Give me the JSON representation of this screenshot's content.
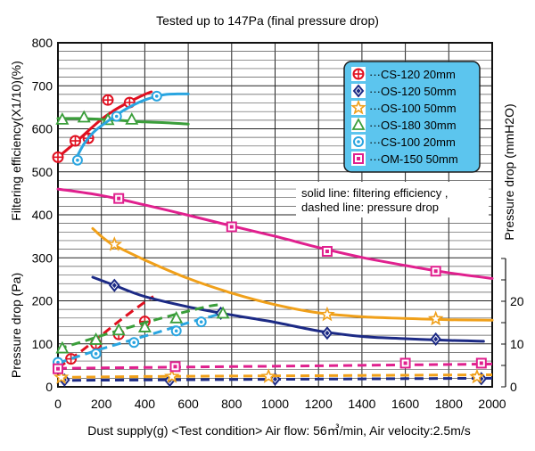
{
  "chart_data": {
    "type": "line",
    "title": "Tested up to 147Pa (final pressure drop)",
    "xlabel": "Dust supply(g)  <Test condition> Air flow: 56㎥/min, Air velocity:2.5m/s",
    "ylabel_left_top": "Filtering efficiency(X1/10)(%)",
    "ylabel_left_bottom": "Pressure drop (Pa)",
    "ylabel_right": "Pressure drop (mmH2O)",
    "xlim": [
      0,
      2000
    ],
    "ylim": [
      0,
      800
    ],
    "ylim_right": [
      0,
      30
    ],
    "xticks": [
      "0",
      "200",
      "400",
      "600",
      "800",
      "1000",
      "1200",
      "1400",
      "1600",
      "1800",
      "2000"
    ],
    "yticks_left": [
      "0",
      "100",
      "200",
      "300",
      "400",
      "500",
      "600",
      "700",
      "800"
    ],
    "yticks_right": [
      "0",
      "10",
      "20"
    ],
    "note_lines": [
      "solid line: filtering efficiency ,",
      "dashed line: pressure drop"
    ],
    "legend_position": "top-right",
    "series": [
      {
        "name": "CS-120 20mm",
        "color": "#e01020",
        "marker": "circle-plus",
        "efficiency": [
          [
            0,
            534
          ],
          [
            50,
            555
          ],
          [
            100,
            577
          ],
          [
            150,
            600
          ],
          [
            200,
            622
          ],
          [
            250,
            640
          ],
          [
            300,
            655
          ],
          [
            350,
            668
          ],
          [
            400,
            680
          ],
          [
            430,
            686
          ]
        ],
        "efficiency_markers": [
          [
            0,
            534
          ],
          [
            80,
            572
          ],
          [
            140,
            578
          ],
          [
            230,
            667
          ],
          [
            330,
            661
          ]
        ],
        "pressure": [
          [
            0,
            44
          ],
          [
            100,
            80
          ],
          [
            200,
            120
          ],
          [
            300,
            160
          ],
          [
            400,
            197
          ],
          [
            440,
            210
          ]
        ],
        "pressure_markers": [
          [
            60,
            65
          ],
          [
            175,
            100
          ],
          [
            280,
            122
          ],
          [
            400,
            152
          ]
        ]
      },
      {
        "name": "OS-120 50mm",
        "color": "#1c2a85",
        "marker": "diamond",
        "efficiency": [
          [
            160,
            255
          ],
          [
            260,
            236
          ],
          [
            400,
            210
          ],
          [
            600,
            186
          ],
          [
            800,
            167
          ],
          [
            1000,
            150
          ],
          [
            1200,
            130
          ],
          [
            1400,
            117
          ],
          [
            1600,
            112
          ],
          [
            1800,
            108
          ],
          [
            1960,
            106
          ]
        ],
        "efficiency_markers": [
          [
            260,
            236
          ],
          [
            750,
            171
          ],
          [
            1240,
            125
          ],
          [
            1740,
            111
          ]
        ],
        "pressure": [
          [
            0,
            15
          ],
          [
            400,
            16
          ],
          [
            800,
            17
          ],
          [
            1200,
            18
          ],
          [
            1600,
            19
          ],
          [
            2000,
            20
          ]
        ],
        "pressure_markers": [
          [
            30,
            16
          ],
          [
            515,
            15
          ],
          [
            1000,
            18
          ],
          [
            1950,
            19
          ]
        ]
      },
      {
        "name": "OS-100 50mm",
        "color": "#f0a01a",
        "marker": "star",
        "efficiency": [
          [
            160,
            368
          ],
          [
            240,
            335
          ],
          [
            400,
            295
          ],
          [
            600,
            252
          ],
          [
            800,
            218
          ],
          [
            1000,
            191
          ],
          [
            1200,
            172
          ],
          [
            1400,
            163
          ],
          [
            1600,
            159
          ],
          [
            1800,
            156
          ],
          [
            2000,
            155
          ]
        ],
        "efficiency_markers": [
          [
            260,
            331
          ],
          [
            1240,
            168
          ],
          [
            1740,
            158
          ]
        ],
        "pressure": [
          [
            0,
            22
          ],
          [
            400,
            24
          ],
          [
            800,
            25
          ],
          [
            1200,
            26
          ],
          [
            1600,
            27
          ],
          [
            2000,
            28
          ]
        ],
        "pressure_markers": [
          [
            15,
            22
          ],
          [
            525,
            24
          ],
          [
            970,
            24
          ],
          [
            1930,
            23
          ]
        ]
      },
      {
        "name": "OS-180 30mm",
        "color": "#3a9e3a",
        "marker": "triangle",
        "efficiency": [
          [
            0,
            624
          ],
          [
            100,
            624
          ],
          [
            200,
            622
          ],
          [
            300,
            619
          ],
          [
            400,
            616
          ],
          [
            500,
            614
          ],
          [
            600,
            611
          ]
        ],
        "efficiency_markers": [
          [
            20,
            622
          ],
          [
            120,
            627
          ],
          [
            230,
            621
          ],
          [
            340,
            622
          ]
        ],
        "pressure": [
          [
            0,
            88
          ],
          [
            100,
            103
          ],
          [
            200,
            119
          ],
          [
            300,
            134
          ],
          [
            400,
            149
          ],
          [
            500,
            163
          ],
          [
            600,
            176
          ],
          [
            700,
            188
          ],
          [
            760,
            192
          ]
        ],
        "pressure_markers": [
          [
            20,
            90
          ],
          [
            175,
            110
          ],
          [
            280,
            132
          ],
          [
            400,
            139
          ],
          [
            545,
            160
          ],
          [
            760,
            171
          ]
        ]
      },
      {
        "name": "CS-100 20mm",
        "color": "#2aa5e0",
        "marker": "circle-dot",
        "efficiency": [
          [
            80,
            528
          ],
          [
            120,
            565
          ],
          [
            160,
            590
          ],
          [
            200,
            607
          ],
          [
            250,
            625
          ],
          [
            300,
            642
          ],
          [
            350,
            656
          ],
          [
            400,
            667
          ],
          [
            450,
            675
          ],
          [
            500,
            680
          ],
          [
            550,
            681
          ],
          [
            600,
            681
          ]
        ],
        "efficiency_markers": [
          [
            90,
            527
          ],
          [
            270,
            629
          ],
          [
            455,
            676
          ]
        ],
        "pressure": [
          [
            0,
            55
          ],
          [
            100,
            72
          ],
          [
            200,
            88
          ],
          [
            300,
            103
          ],
          [
            400,
            118
          ],
          [
            500,
            133
          ],
          [
            600,
            149
          ],
          [
            700,
            163
          ],
          [
            750,
            170
          ]
        ],
        "pressure_markers": [
          [
            0,
            57
          ],
          [
            175,
            77
          ],
          [
            350,
            103
          ],
          [
            545,
            130
          ],
          [
            660,
            151
          ]
        ]
      },
      {
        "name": "OM-150 50mm",
        "color": "#e0208e",
        "marker": "square",
        "efficiency": [
          [
            0,
            460
          ],
          [
            200,
            445
          ],
          [
            400,
            423
          ],
          [
            600,
            399
          ],
          [
            800,
            374
          ],
          [
            1000,
            350
          ],
          [
            1200,
            324
          ],
          [
            1400,
            301
          ],
          [
            1600,
            282
          ],
          [
            1800,
            265
          ],
          [
            2000,
            252
          ]
        ],
        "efficiency_markers": [
          [
            280,
            438
          ],
          [
            800,
            372
          ],
          [
            1240,
            315
          ],
          [
            1740,
            269
          ]
        ],
        "pressure": [
          [
            0,
            43
          ],
          [
            400,
            45
          ],
          [
            800,
            47
          ],
          [
            1200,
            49
          ],
          [
            1600,
            51
          ],
          [
            2000,
            53
          ]
        ],
        "pressure_markers": [
          [
            0,
            42
          ],
          [
            540,
            47
          ],
          [
            1600,
            55
          ],
          [
            1950,
            55
          ]
        ]
      }
    ]
  }
}
